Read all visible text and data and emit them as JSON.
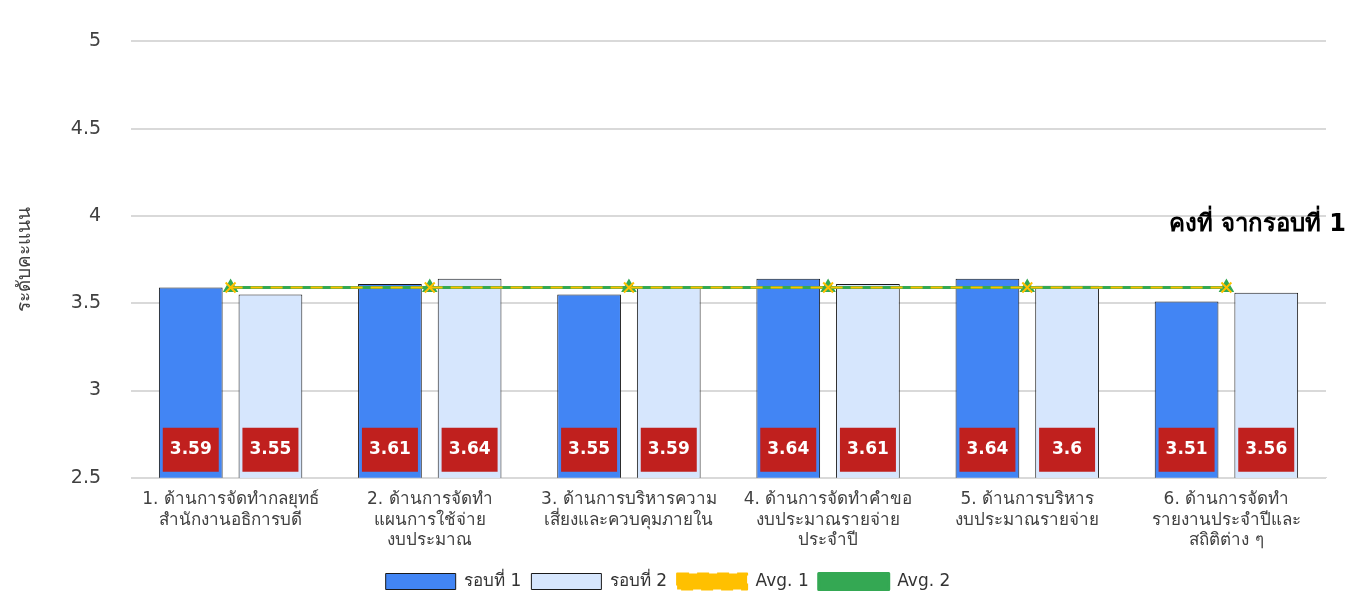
{
  "chart_data": {
    "type": "bar",
    "ylabel": "ระดับคะแนน",
    "categories": [
      "1. ด้านการจัดทำกลยุทธ์\nสำนักงานอธิการบดี",
      "2. ด้านการจัดทำ\nแผนการใช้จ่าย\nงบประมาณ",
      "3. ด้านการบริหารความ\nเสี่ยงและควบคุมภายใน",
      "4. ด้านการจัดทำคำขอ\nงบประมาณรายจ่าย\nประจำปี",
      "5. ด้านการบริหาร\nงบประมาณรายจ่าย",
      "6. ด้านการจัดทำ\nรายงานประจำปีและ\nสถิติต่าง ๆ"
    ],
    "series": [
      {
        "name": "รอบที่ 1",
        "color": "#4285f4",
        "values": [
          3.59,
          3.61,
          3.55,
          3.64,
          3.64,
          3.51
        ],
        "value_labels": [
          "3.59",
          "3.61",
          "3.55",
          "3.64",
          "3.64",
          "3.51"
        ]
      },
      {
        "name": "รอบที่ 2",
        "color": "#d6e6fd",
        "values": [
          3.55,
          3.64,
          3.59,
          3.61,
          3.6,
          3.56
        ],
        "value_labels": [
          "3.55",
          "3.64",
          "3.59",
          "3.61",
          "3.6",
          "3.56"
        ]
      },
      {
        "name": "Avg. 1",
        "type": "line",
        "color": "#ffc000",
        "line_style": "dashed",
        "marker": "cross",
        "values": [
          3.59,
          3.59,
          3.59,
          3.59,
          3.59,
          3.59
        ]
      },
      {
        "name": "Avg. 2",
        "type": "line",
        "color": "#34a853",
        "line_style": "solid",
        "marker": "triangle",
        "values": [
          3.59,
          3.59,
          3.59,
          3.59,
          3.59,
          3.59
        ]
      }
    ],
    "ylim": [
      2.5,
      5
    ],
    "yticks": [
      2.5,
      3,
      3.5,
      4,
      4.5,
      5
    ],
    "grid": "y",
    "legend": "bottom",
    "annotations": [
      "คงที่ จากรอบที่ 1"
    ]
  }
}
